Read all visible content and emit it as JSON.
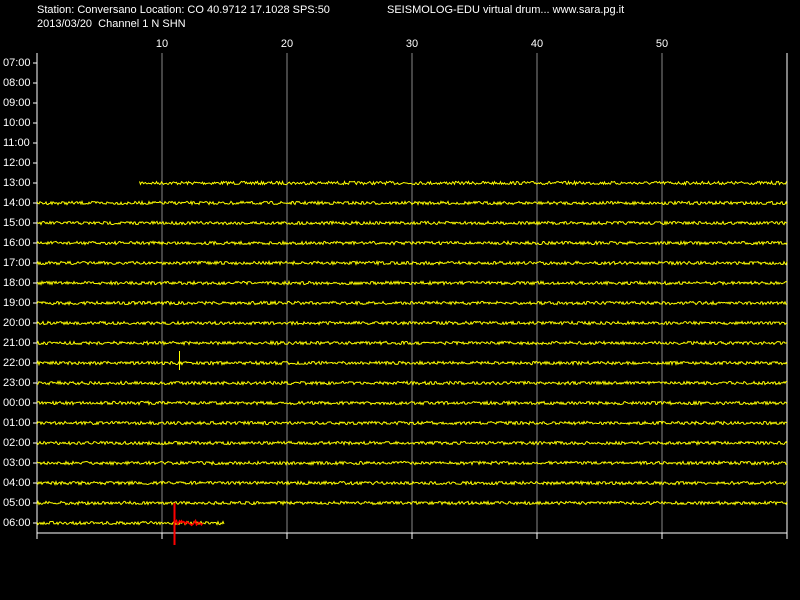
{
  "chart_data": {
    "type": "helicorder",
    "title": "Station: Conversano Location: CO 40.9712 17.1028 SPS:50",
    "subtitle": "SEISMOLOG-EDU virtual drum... www.sara.pg.it",
    "date_line": "2013/03/20  Channel 1 N SHN",
    "categories": [
      "07:00",
      "08:00",
      "09:00",
      "10:00",
      "11:00",
      "12:00",
      "13:00",
      "14:00",
      "15:00",
      "16:00",
      "17:00",
      "18:00",
      "19:00",
      "20:00",
      "21:00",
      "22:00",
      "23:00",
      "00:00",
      "01:00",
      "02:00",
      "03:00",
      "04:00",
      "05:00",
      "06:00"
    ],
    "starts": [
      null,
      null,
      null,
      null,
      null,
      null,
      8.2,
      0,
      0,
      0,
      0,
      0,
      0,
      0,
      0,
      0,
      0,
      0,
      0,
      0,
      0,
      0,
      0,
      0
    ],
    "ends": [
      null,
      null,
      null,
      null,
      null,
      null,
      60,
      60,
      60,
      60,
      60,
      60,
      60,
      60,
      60,
      60,
      60,
      60,
      60,
      60,
      60,
      60,
      60,
      15
    ],
    "events": [
      {
        "row": 15,
        "x": 11.4,
        "x_end": 11.6,
        "color": "#ffff00"
      },
      {
        "row": 23,
        "x": 11,
        "x_end": 13.3,
        "color": "#ff0000"
      }
    ],
    "color": "#ffff00",
    "xlim": [
      0,
      60
    ],
    "xticks": [
      10,
      20,
      30,
      40,
      50
    ],
    "grid": true
  }
}
